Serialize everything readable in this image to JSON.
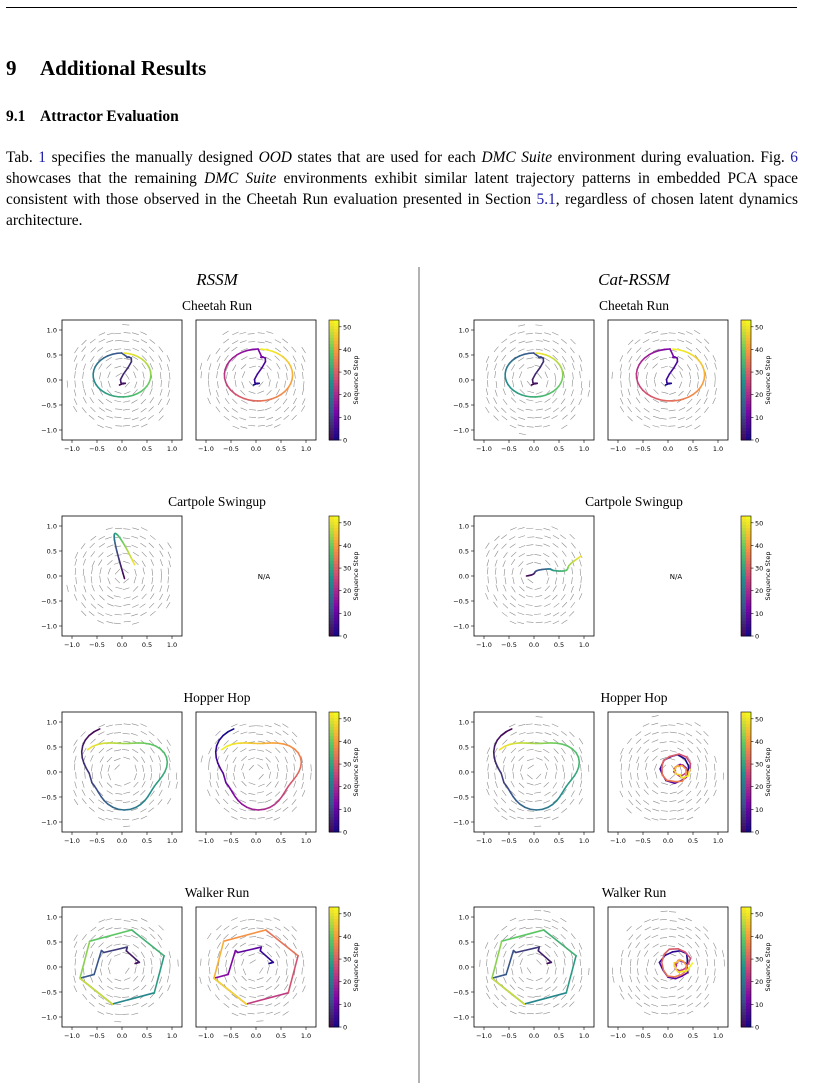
{
  "section": {
    "number": "9",
    "title": "Additional Results"
  },
  "subsection": {
    "number": "9.1",
    "title": "Attractor Evaluation"
  },
  "paragraph": [
    {
      "t": "Tab. "
    },
    {
      "t": "1",
      "ref": true
    },
    {
      "t": " specifies the manually designed "
    },
    {
      "t": "OOD",
      "it": true
    },
    {
      "t": " states that are used for each "
    },
    {
      "t": "DMC Suite",
      "it": true
    },
    {
      "t": " environment during evaluation.  Fig. "
    },
    {
      "t": "6",
      "ref": true
    },
    {
      "t": " showcases that the remaining "
    },
    {
      "t": "DMC Suite",
      "it": true
    },
    {
      "t": " environments exhibit similar latent trajectory patterns in embedded PCA space consistent with those observed in the Cheetah Run evaluation presented in Section "
    },
    {
      "t": "5.1",
      "ref": true
    },
    {
      "t": ", regardless of chosen latent dynamics architecture."
    }
  ],
  "figure": {
    "columns": [
      {
        "title": "RSSM",
        "rows": [
          {
            "env": "Cheetah Run",
            "panels": [
              "spiral-loop",
              "spiral-loop"
            ]
          },
          {
            "env": "Cartpole Swingup",
            "panels": [
              "hook",
              "na"
            ]
          },
          {
            "env": "Hopper Hop",
            "panels": [
              "loop",
              "loop"
            ]
          },
          {
            "env": "Walker Run",
            "panels": [
              "polygon",
              "polygon"
            ]
          }
        ]
      },
      {
        "title": "Cat-RSSM",
        "rows": [
          {
            "env": "Cheetah Run",
            "panels": [
              "spiral-loop",
              "spiral-loop"
            ]
          },
          {
            "env": "Cartpole Swingup",
            "panels": [
              "line",
              "na"
            ]
          },
          {
            "env": "Hopper Hop",
            "panels": [
              "loop",
              "scribble"
            ]
          },
          {
            "env": "Walker Run",
            "panels": [
              "polygon",
              "scribble"
            ]
          }
        ]
      }
    ],
    "na_label": "N/A",
    "ticks": [
      "−1.0",
      "−0.5",
      "0.0",
      "0.5",
      "1.0"
    ],
    "colorbar": {
      "label": "Sequence Step",
      "ticks": [
        "0",
        "10",
        "20",
        "30",
        "40",
        "50"
      ]
    },
    "colors": {
      "viridis": [
        "#440154",
        "#3b528b",
        "#21918c",
        "#5ec962",
        "#fde725"
      ],
      "plasma": [
        "#0d0887",
        "#7e03a8",
        "#cc4778",
        "#f89540",
        "#f0f921"
      ],
      "arrow": "#8c8c8c",
      "divider": "#808080"
    }
  }
}
